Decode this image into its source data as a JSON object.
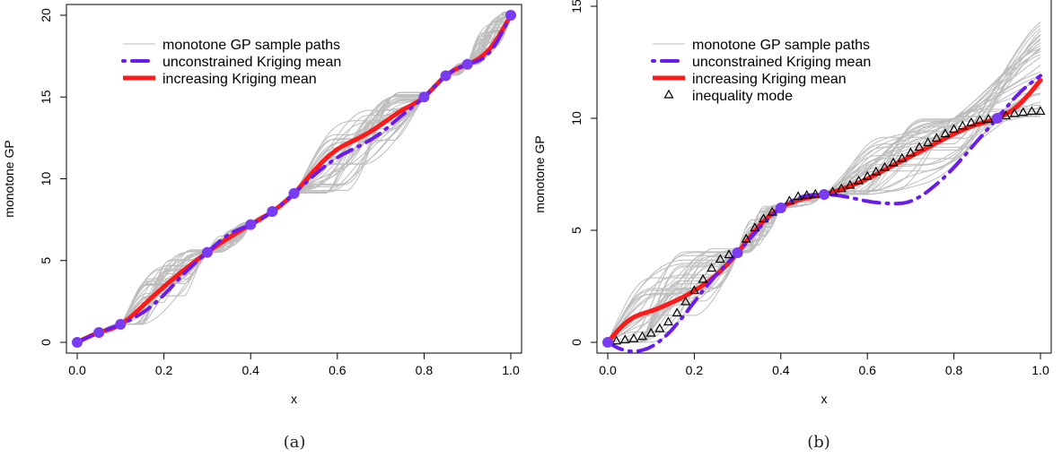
{
  "colors": {
    "sample_paths": "#bdbdbd",
    "unconstrained": "#6a1cf0",
    "increasing": "#ff1a1a",
    "points": "#7a3cf2",
    "mode": "#000000"
  },
  "chart_data": [
    {
      "type": "line",
      "caption": "(a)",
      "xlabel": "x",
      "ylabel": "monotone GP",
      "xlim": [
        0,
        1
      ],
      "ylim": [
        0,
        20
      ],
      "xticks": [
        "0.0",
        "0.2",
        "0.4",
        "0.6",
        "0.8",
        "1.0"
      ],
      "yticks": [
        "0",
        "5",
        "10",
        "15",
        "20"
      ],
      "grid": false,
      "legend": [
        {
          "label": "monotone GP sample paths",
          "style": "thin-gray"
        },
        {
          "label": "unconstrained Kriging mean",
          "style": "dash-dot-purple"
        },
        {
          "label": "increasing Kriging mean",
          "style": "thick-red"
        }
      ],
      "legend_position": "top-left",
      "observations": {
        "x": [
          0.0,
          0.05,
          0.1,
          0.3,
          0.4,
          0.45,
          0.5,
          0.8,
          0.85,
          0.9,
          1.0
        ],
        "y": [
          0.0,
          0.6,
          1.1,
          5.5,
          7.2,
          8.0,
          9.1,
          15.0,
          16.3,
          17.0,
          20.0
        ]
      },
      "series": [
        {
          "name": "increasing Kriging mean",
          "x": [
            0.0,
            0.05,
            0.1,
            0.15,
            0.2,
            0.25,
            0.3,
            0.35,
            0.4,
            0.45,
            0.5,
            0.55,
            0.6,
            0.65,
            0.7,
            0.75,
            0.8,
            0.85,
            0.9,
            0.95,
            1.0
          ],
          "y": [
            0.0,
            0.6,
            1.1,
            2.2,
            3.4,
            4.5,
            5.5,
            6.4,
            7.2,
            8.0,
            9.1,
            10.6,
            11.8,
            12.5,
            13.3,
            14.2,
            15.0,
            16.3,
            17.0,
            17.9,
            20.0
          ]
        },
        {
          "name": "unconstrained Kriging mean",
          "x": [
            0.0,
            0.05,
            0.1,
            0.15,
            0.2,
            0.25,
            0.3,
            0.35,
            0.4,
            0.45,
            0.5,
            0.55,
            0.6,
            0.65,
            0.7,
            0.75,
            0.8,
            0.85,
            0.9,
            0.95,
            1.0
          ],
          "y": [
            0.0,
            0.6,
            1.1,
            1.8,
            2.9,
            4.3,
            5.5,
            6.6,
            7.2,
            8.0,
            9.1,
            10.3,
            11.3,
            12.0,
            12.8,
            13.9,
            15.0,
            16.3,
            17.0,
            17.7,
            20.0
          ]
        }
      ]
    },
    {
      "type": "line",
      "caption": "(b)",
      "xlabel": "x",
      "ylabel": "monotone GP",
      "xlim": [
        0,
        1
      ],
      "ylim": [
        0,
        15
      ],
      "xticks": [
        "0.0",
        "0.2",
        "0.4",
        "0.6",
        "0.8",
        "1.0"
      ],
      "yticks": [
        "0",
        "5",
        "10",
        "15"
      ],
      "grid": false,
      "legend": [
        {
          "label": "monotone GP sample paths",
          "style": "thin-gray"
        },
        {
          "label": "unconstrained Kriging mean",
          "style": "dash-dot-purple"
        },
        {
          "label": "increasing Kriging mean",
          "style": "thick-red"
        },
        {
          "label": "inequality mode",
          "style": "triangle"
        }
      ],
      "legend_position": "top-left",
      "observations": {
        "x": [
          0.0,
          0.3,
          0.4,
          0.5,
          0.9
        ],
        "y": [
          0.0,
          4.0,
          6.0,
          6.6,
          10.0
        ]
      },
      "series": [
        {
          "name": "increasing Kriging mean",
          "x": [
            0.0,
            0.05,
            0.1,
            0.15,
            0.2,
            0.25,
            0.3,
            0.35,
            0.4,
            0.45,
            0.5,
            0.55,
            0.6,
            0.65,
            0.7,
            0.75,
            0.8,
            0.85,
            0.9,
            0.95,
            1.0
          ],
          "y": [
            0.0,
            1.0,
            1.4,
            1.8,
            2.3,
            3.0,
            4.0,
            5.2,
            6.0,
            6.4,
            6.6,
            6.9,
            7.3,
            7.8,
            8.3,
            8.8,
            9.3,
            9.7,
            10.0,
            10.6,
            11.7
          ]
        },
        {
          "name": "unconstrained Kriging mean",
          "x": [
            0.0,
            0.03,
            0.06,
            0.1,
            0.15,
            0.2,
            0.25,
            0.3,
            0.35,
            0.4,
            0.45,
            0.5,
            0.55,
            0.6,
            0.65,
            0.7,
            0.75,
            0.8,
            0.85,
            0.9,
            0.95,
            1.0
          ],
          "y": [
            0.0,
            -0.3,
            -0.4,
            -0.2,
            0.6,
            1.8,
            3.0,
            4.0,
            5.1,
            6.0,
            6.5,
            6.6,
            6.5,
            6.3,
            6.2,
            6.3,
            6.9,
            7.8,
            8.9,
            10.0,
            11.1,
            11.9
          ]
        },
        {
          "name": "inequality mode",
          "x": [
            0.0,
            0.02,
            0.04,
            0.06,
            0.08,
            0.1,
            0.12,
            0.14,
            0.16,
            0.18,
            0.2,
            0.22,
            0.24,
            0.26,
            0.28,
            0.3,
            0.32,
            0.34,
            0.36,
            0.38,
            0.4,
            0.42,
            0.44,
            0.46,
            0.48,
            0.5,
            0.52,
            0.54,
            0.56,
            0.58,
            0.6,
            0.62,
            0.64,
            0.66,
            0.68,
            0.7,
            0.72,
            0.74,
            0.76,
            0.78,
            0.8,
            0.82,
            0.84,
            0.86,
            0.88,
            0.9,
            0.92,
            0.94,
            0.96,
            0.98,
            1.0
          ],
          "y": [
            0.0,
            0.05,
            0.1,
            0.15,
            0.25,
            0.4,
            0.6,
            0.9,
            1.3,
            1.8,
            2.3,
            2.8,
            3.3,
            3.7,
            3.9,
            4.0,
            4.6,
            5.1,
            5.5,
            5.8,
            6.0,
            6.3,
            6.5,
            6.55,
            6.6,
            6.6,
            6.7,
            6.85,
            7.0,
            7.2,
            7.4,
            7.6,
            7.8,
            8.0,
            8.2,
            8.45,
            8.7,
            8.9,
            9.1,
            9.3,
            9.5,
            9.65,
            9.8,
            9.9,
            9.95,
            10.0,
            10.1,
            10.2,
            10.25,
            10.3,
            10.3
          ]
        }
      ]
    }
  ]
}
